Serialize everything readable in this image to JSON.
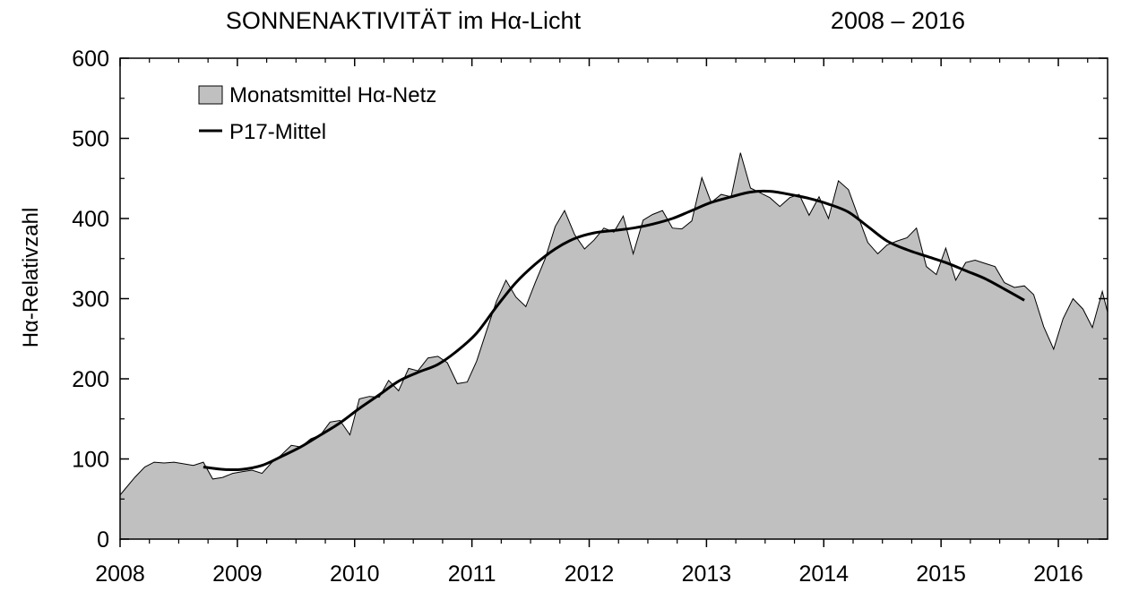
{
  "chart_data": {
    "type": "area",
    "title": "SONNENAKTIVITÄT  im Hα-Licht",
    "subtitle": "2008 – 2016",
    "xlabel": "",
    "ylabel": "Hα-Relativzahl",
    "xlim": [
      2008,
      2016.42
    ],
    "ylim": [
      0,
      600
    ],
    "x_ticks": [
      "2008",
      "2009",
      "2010",
      "2011",
      "2012",
      "2013",
      "2014",
      "2015",
      "2016"
    ],
    "y_ticks": [
      "0",
      "100",
      "200",
      "300",
      "400",
      "500",
      "600"
    ],
    "legend_position": "top-left",
    "grid": false,
    "series": [
      {
        "name": "Monatsmittel Hα-Netz",
        "kind": "area",
        "color": "#c0c0c0",
        "x": [
          2008.0,
          2008.04,
          2008.125,
          2008.21,
          2008.29,
          2008.375,
          2008.46,
          2008.54,
          2008.625,
          2008.71,
          2008.79,
          2008.875,
          2008.96,
          2009.04,
          2009.125,
          2009.21,
          2009.29,
          2009.375,
          2009.46,
          2009.54,
          2009.625,
          2009.71,
          2009.79,
          2009.875,
          2009.96,
          2010.04,
          2010.125,
          2010.21,
          2010.29,
          2010.375,
          2010.46,
          2010.54,
          2010.625,
          2010.71,
          2010.79,
          2010.875,
          2010.96,
          2011.04,
          2011.125,
          2011.21,
          2011.29,
          2011.375,
          2011.46,
          2011.54,
          2011.625,
          2011.71,
          2011.79,
          2011.875,
          2011.96,
          2012.04,
          2012.125,
          2012.21,
          2012.29,
          2012.375,
          2012.46,
          2012.54,
          2012.625,
          2012.71,
          2012.79,
          2012.875,
          2012.96,
          2013.04,
          2013.125,
          2013.21,
          2013.29,
          2013.375,
          2013.46,
          2013.54,
          2013.625,
          2013.71,
          2013.79,
          2013.875,
          2013.96,
          2014.04,
          2014.125,
          2014.21,
          2014.29,
          2014.375,
          2014.46,
          2014.54,
          2014.625,
          2014.71,
          2014.79,
          2014.875,
          2014.96,
          2015.04,
          2015.125,
          2015.21,
          2015.29,
          2015.375,
          2015.46,
          2015.54,
          2015.625,
          2015.71,
          2015.79,
          2015.875,
          2015.96,
          2016.04,
          2016.125,
          2016.21,
          2016.29,
          2016.375,
          2016.42
        ],
        "y": [
          55,
          62,
          77,
          90,
          96,
          95,
          96,
          94,
          92,
          96,
          75,
          77,
          82,
          84,
          86,
          82,
          95,
          105,
          117,
          115,
          125,
          130,
          146,
          148,
          130,
          175,
          178,
          177,
          198,
          185,
          213,
          210,
          226,
          228,
          220,
          194,
          196,
          222,
          260,
          297,
          323,
          302,
          290,
          320,
          350,
          390,
          410,
          380,
          362,
          373,
          388,
          383,
          403,
          356,
          398,
          405,
          410,
          388,
          387,
          397,
          451,
          420,
          430,
          427,
          482,
          438,
          432,
          426,
          415,
          426,
          430,
          404,
          427,
          400,
          447,
          436,
          404,
          370,
          356,
          367,
          372,
          376,
          388,
          340,
          330,
          363,
          323,
          345,
          348,
          344,
          340,
          320,
          314,
          316,
          305,
          265,
          237,
          275,
          300,
          287,
          264,
          309,
          283
        ]
      },
      {
        "name": "P17-Mittel",
        "kind": "line",
        "color": "#000000",
        "x": [
          2008.71,
          2008.875,
          2009.04,
          2009.21,
          2009.375,
          2009.54,
          2009.71,
          2009.875,
          2010.04,
          2010.21,
          2010.375,
          2010.54,
          2010.71,
          2010.875,
          2011.04,
          2011.21,
          2011.375,
          2011.54,
          2011.71,
          2011.875,
          2012.04,
          2012.21,
          2012.375,
          2012.54,
          2012.71,
          2012.875,
          2013.04,
          2013.21,
          2013.375,
          2013.54,
          2013.71,
          2013.875,
          2014.04,
          2014.21,
          2014.375,
          2014.54,
          2014.71,
          2014.875,
          2015.04,
          2015.21,
          2015.375,
          2015.54,
          2015.71
        ],
        "y": [
          90,
          87,
          87,
          92,
          103,
          115,
          130,
          145,
          163,
          180,
          197,
          208,
          218,
          235,
          257,
          290,
          320,
          343,
          362,
          375,
          382,
          385,
          388,
          393,
          400,
          410,
          420,
          427,
          433,
          434,
          430,
          425,
          418,
          408,
          390,
          372,
          361,
          353,
          345,
          335,
          325,
          312,
          298
        ]
      }
    ]
  }
}
